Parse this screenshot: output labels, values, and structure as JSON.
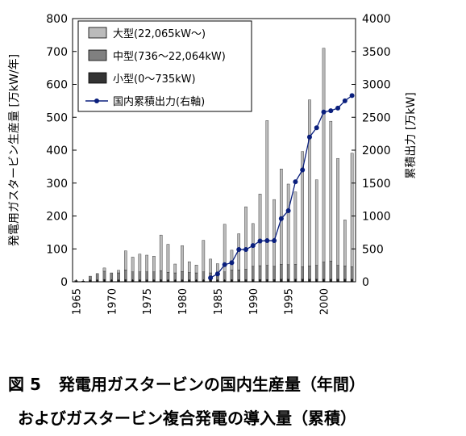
{
  "chart_data": {
    "type": "bar",
    "stacked": true,
    "x": [
      1965,
      1966,
      1967,
      1968,
      1969,
      1970,
      1971,
      1972,
      1973,
      1974,
      1975,
      1976,
      1977,
      1978,
      1979,
      1980,
      1981,
      1982,
      1983,
      1984,
      1985,
      1986,
      1987,
      1988,
      1989,
      1990,
      1991,
      1992,
      1993,
      1994,
      1995,
      1996,
      1997,
      1998,
      1999,
      2000,
      2001,
      2002,
      2003,
      2004
    ],
    "x_ticks": [
      "1965",
      "1970",
      "1975",
      "1980",
      "1985",
      "1990",
      "1995",
      "2000"
    ],
    "series": [
      {
        "name": "小型(0～735kW)",
        "color": "#333333",
        "values": [
          2,
          1,
          4,
          5,
          7,
          5,
          5,
          6,
          5,
          5,
          5,
          5,
          6,
          5,
          5,
          5,
          5,
          5,
          5,
          5,
          5,
          5,
          6,
          6,
          6,
          7,
          7,
          7,
          7,
          8,
          8,
          8,
          8,
          8,
          8,
          8,
          8,
          8,
          8,
          8
        ]
      },
      {
        "name": "中型(736～22,064kW)",
        "color": "#808080",
        "values": [
          2,
          1,
          13,
          20,
          25,
          22,
          22,
          30,
          25,
          25,
          25,
          25,
          28,
          24,
          22,
          26,
          23,
          22,
          25,
          22,
          22,
          25,
          30,
          30,
          32,
          40,
          42,
          43,
          40,
          45,
          44,
          45,
          38,
          40,
          42,
          52,
          55,
          42,
          40,
          38
        ]
      },
      {
        "name": "大型(22,065kW～)",
        "color": "#bbbbbb",
        "values": [
          0,
          0,
          0,
          0,
          10,
          0,
          8,
          58,
          45,
          54,
          51,
          48,
          108,
          85,
          27,
          79,
          33,
          24,
          96,
          42,
          28,
          145,
          60,
          110,
          190,
          130,
          218,
          440,
          203,
          290,
          245,
          220,
          350,
          505,
          260,
          650,
          425,
          325,
          140,
          345
        ]
      }
    ],
    "cumulative": {
      "name": "国内累積出力(右軸)",
      "color": "#0a1f7d",
      "axis": "right",
      "x": [
        1984,
        1985,
        1986,
        1987,
        1988,
        1989,
        1990,
        1991,
        1992,
        1993,
        1994,
        1995,
        1996,
        1997,
        1998,
        1999,
        2000,
        2001,
        2002,
        2003,
        2004
      ],
      "values": [
        60,
        120,
        260,
        290,
        490,
        490,
        550,
        620,
        625,
        625,
        960,
        1080,
        1520,
        1700,
        2200,
        2340,
        2580,
        2600,
        2640,
        2750,
        2830
      ]
    },
    "ylabel": "発電用ガスタービン生産量 [万kW/年]",
    "y2label": "累積出力 [万kW]",
    "ylim": [
      0,
      800
    ],
    "y2lim": [
      0,
      4000
    ],
    "yticks": [
      0,
      100,
      200,
      300,
      400,
      500,
      600,
      700,
      800
    ],
    "y2ticks": [
      0,
      500,
      1000,
      1500,
      2000,
      2500,
      3000,
      3500,
      4000
    ],
    "legend_position": "top-left",
    "grid": false
  },
  "legend": {
    "large": "大型(22,065kW～)",
    "medium": "中型(736～22,064kW)",
    "small": "小型(0～735kW)",
    "cumulative": "国内累積出力(右軸)"
  },
  "caption": {
    "figure_label": "図 5",
    "line1": "発電用ガスタービンの国内生産量（年間）",
    "line2": "およびガスタービン複合発電の導入量（累積）"
  }
}
